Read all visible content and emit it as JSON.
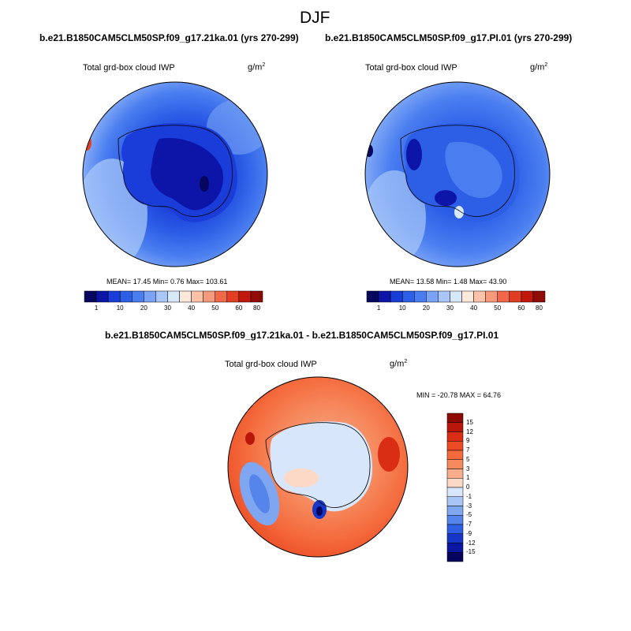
{
  "page": {
    "title": "DJF"
  },
  "panel1": {
    "case": "b.e21.B1850CAM5CLM50SP.f09_g17.21ka.01 (yrs 270-299)",
    "variable": "Total grd-box cloud IWP",
    "units": "g/m",
    "units_exp": "2",
    "stats": "MEAN=  17.45  Min=   0.76  Max= 103.61"
  },
  "panel2": {
    "case": "b.e21.B1850CAM5CLM50SP.f09_g17.PI.01 (yrs 270-299)",
    "variable": "Total grd-box cloud IWP",
    "units": "g/m",
    "units_exp": "2",
    "stats": "MEAN=  13.58  Min=   1.48  Max=  43.90"
  },
  "diff": {
    "case": "b.e21.B1850CAM5CLM50SP.f09_g17.21ka.01 - b.e21.B1850CAM5CLM50SP.f09_g17.PI.01",
    "variable": "Total grd-box cloud IWP",
    "units": "g/m",
    "units_exp": "2",
    "minmax": "MIN = -20.78 MAX =  64.76"
  },
  "colorbar_top": {
    "colors": [
      "#06065f",
      "#0c15a8",
      "#1a3cd8",
      "#2c5ee6",
      "#4a7ef0",
      "#7aa3f5",
      "#a8c7f8",
      "#d8e8fb",
      "#fde8dc",
      "#fbc2a8",
      "#f69a7c",
      "#f0684c",
      "#e23e23",
      "#c2180c",
      "#8e0a04"
    ],
    "labels": [
      "1",
      "10",
      "20",
      "30",
      "40",
      "50",
      "60",
      "80"
    ]
  },
  "colorbar_diff": {
    "colors": [
      "#8e0a04",
      "#b71609",
      "#d92e14",
      "#ec4b24",
      "#f46a3c",
      "#f68a5f",
      "#f9ad8a",
      "#fcd9c6",
      "#d8e6fb",
      "#a9c5f6",
      "#7ea6f1",
      "#5585ea",
      "#2f5fe2",
      "#1536c6",
      "#0a16a0",
      "#05055e"
    ],
    "labels": [
      "15",
      "12",
      "9",
      "7",
      "5",
      "3",
      "1",
      "0",
      "-1",
      "-3",
      "-5",
      "-7",
      "-9",
      "-12",
      "-15"
    ]
  }
}
